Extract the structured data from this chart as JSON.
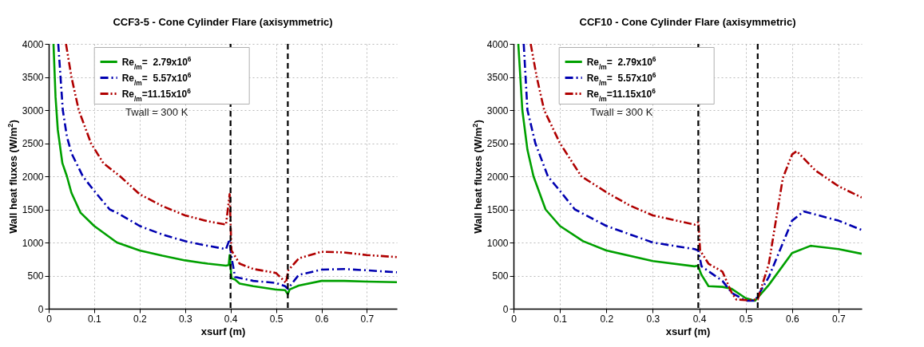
{
  "chart_data": [
    {
      "type": "line",
      "title": "CCF3-5 - Cone Cylinder Flare (axisymmetric)",
      "xlabel": "xsurf (m)",
      "ylabel": "Wall heat fluxes (W/m$^{2}$)",
      "xlim": [
        0,
        0.766
      ],
      "ylim": [
        0,
        4000
      ],
      "xticks": [
        0,
        0.1,
        0.2,
        0.3,
        0.4,
        0.5,
        0.6,
        0.7
      ],
      "yticks": [
        0,
        500,
        1000,
        1500,
        2000,
        2500,
        3000,
        3500,
        4000
      ],
      "grid": true,
      "legend": "top",
      "annotations": [
        "Twall = 300 K"
      ],
      "ref_lines": [
        {
          "axis": "x",
          "value": 0.4,
          "color": "#000000",
          "line_style": "dashed"
        },
        {
          "axis": "x",
          "value": 0.526,
          "color": "#000000",
          "line_style": "dashed"
        }
      ],
      "series": [
        {
          "name": "Re$_{/m}$=  2.79x10$^{6}$",
          "color": "#00a000",
          "line_style": "solid",
          "x": [
            0.0105,
            0.015,
            0.02,
            0.03,
            0.04,
            0.05,
            0.07,
            0.1,
            0.15,
            0.2,
            0.25,
            0.3,
            0.35,
            0.39,
            0.396,
            0.398,
            0.4,
            0.402,
            0.41,
            0.42,
            0.45,
            0.5,
            0.52,
            0.526,
            0.53,
            0.55,
            0.6,
            0.65,
            0.7,
            0.766
          ],
          "values": [
            4000,
            3200,
            2700,
            2200,
            2000,
            1750,
            1450,
            1250,
            1000,
            880,
            800,
            730,
            680,
            650,
            660,
            810,
            650,
            460,
            440,
            380,
            340,
            290,
            280,
            220,
            290,
            350,
            420,
            420,
            410,
            400
          ]
        },
        {
          "name": "Re$_{/m}$=  5.57x10$^{6}$",
          "color": "#0000b0",
          "line_style": "dashdot",
          "x": [
            0.021,
            0.025,
            0.031,
            0.04,
            0.05,
            0.075,
            0.1,
            0.134,
            0.15,
            0.2,
            0.25,
            0.3,
            0.35,
            0.39,
            0.398,
            0.401,
            0.41,
            0.45,
            0.5,
            0.52,
            0.526,
            0.55,
            0.6,
            0.65,
            0.7,
            0.766
          ],
          "values": [
            4000,
            3600,
            3000,
            2600,
            2350,
            2000,
            1780,
            1500,
            1450,
            1250,
            1120,
            1020,
            950,
            900,
            1050,
            820,
            480,
            420,
            390,
            340,
            300,
            510,
            590,
            600,
            580,
            550
          ]
        },
        {
          "name": "Re$_{/m}$=11.15x10$^{6}$",
          "color": "#b00000",
          "line_style": "dashdotdot",
          "x": [
            0.038,
            0.05,
            0.066,
            0.093,
            0.12,
            0.157,
            0.2,
            0.25,
            0.3,
            0.35,
            0.39,
            0.398,
            0.402,
            0.42,
            0.45,
            0.5,
            0.522,
            0.527,
            0.55,
            0.6,
            0.65,
            0.7,
            0.766
          ],
          "values": [
            4000,
            3500,
            3000,
            2500,
            2200,
            2000,
            1730,
            1550,
            1410,
            1320,
            1270,
            1730,
            880,
            680,
            600,
            540,
            390,
            580,
            760,
            860,
            850,
            810,
            780
          ]
        }
      ]
    },
    {
      "type": "line",
      "title": "CCF10 - Cone Cylinder Flare (axisymmetric)",
      "xlabel": "xsurf (m)",
      "ylabel": "Wall heat fluxes (W/m$^{2}$)",
      "xlim": [
        0,
        0.75
      ],
      "ylim": [
        0,
        4000
      ],
      "xticks": [
        0,
        0.1,
        0.2,
        0.3,
        0.4,
        0.5,
        0.6,
        0.7
      ],
      "yticks": [
        0,
        500,
        1000,
        1500,
        2000,
        2500,
        3000,
        3500,
        4000
      ],
      "grid": true,
      "legend": "top",
      "annotations": [
        "Twall = 300 K"
      ],
      "ref_lines": [
        {
          "axis": "x",
          "value": 0.398,
          "color": "#000000",
          "line_style": "dashed"
        },
        {
          "axis": "x",
          "value": 0.526,
          "color": "#000000",
          "line_style": "dashed"
        }
      ],
      "series": [
        {
          "name": "Re$_{/m}$=  2.79x10$^{6}$",
          "color": "#00a000",
          "line_style": "solid",
          "x": [
            0.0103,
            0.019,
            0.03,
            0.043,
            0.069,
            0.1,
            0.15,
            0.2,
            0.3,
            0.39,
            0.397,
            0.405,
            0.42,
            0.45,
            0.47,
            0.5,
            0.52,
            0.55,
            0.6,
            0.64,
            0.7,
            0.75
          ],
          "values": [
            4000,
            3000,
            2400,
            2000,
            1500,
            1250,
            1020,
            880,
            720,
            640,
            650,
            510,
            340,
            330,
            300,
            160,
            120,
            360,
            840,
            950,
            900,
            830
          ]
        },
        {
          "name": "Re$_{/m}$=  5.57x10$^{6}$",
          "color": "#0000b0",
          "line_style": "dashdot",
          "x": [
            0.022,
            0.03,
            0.047,
            0.074,
            0.1,
            0.132,
            0.2,
            0.3,
            0.39,
            0.398,
            0.405,
            0.45,
            0.47,
            0.5,
            0.52,
            0.55,
            0.6,
            0.625,
            0.7,
            0.75
          ],
          "values": [
            4000,
            3000,
            2500,
            2000,
            1780,
            1500,
            1250,
            1000,
            900,
            880,
            640,
            420,
            240,
            120,
            120,
            480,
            1330,
            1470,
            1330,
            1190
          ]
        },
        {
          "name": "Re$_{/m}$=11.15x10$^{6}$",
          "color": "#b00000",
          "line_style": "dashdotdot",
          "x": [
            0.037,
            0.05,
            0.066,
            0.1,
            0.146,
            0.2,
            0.25,
            0.3,
            0.39,
            0.398,
            0.402,
            0.42,
            0.45,
            0.47,
            0.48,
            0.5,
            0.526,
            0.55,
            0.58,
            0.6,
            0.61,
            0.65,
            0.7,
            0.75
          ],
          "values": [
            4000,
            3500,
            3000,
            2500,
            2000,
            1760,
            1560,
            1410,
            1270,
            1310,
            880,
            680,
            560,
            240,
            140,
            130,
            140,
            680,
            1970,
            2330,
            2380,
            2090,
            1850,
            1680
          ]
        }
      ]
    }
  ]
}
